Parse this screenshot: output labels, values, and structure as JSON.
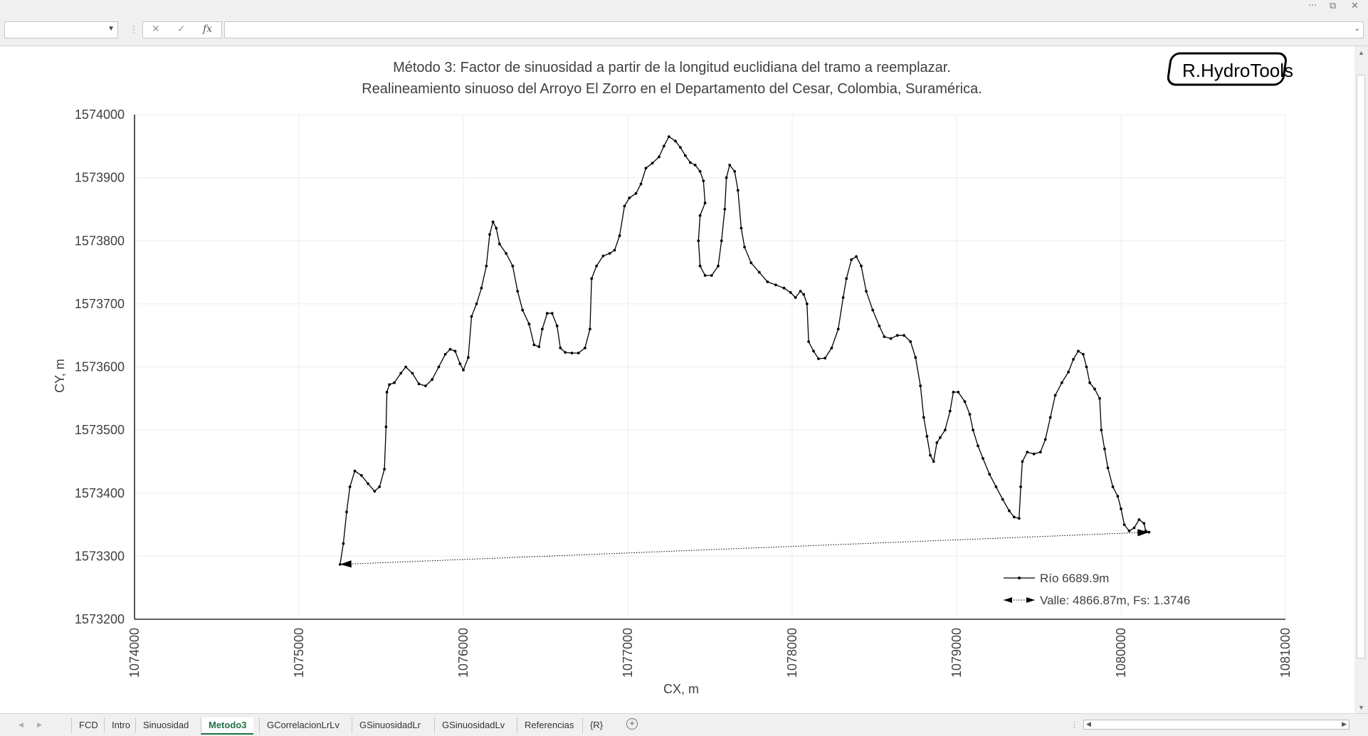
{
  "window": {
    "controls": [
      "···",
      "⧉",
      "✕"
    ]
  },
  "formula_bar": {
    "name_box_value": "",
    "cancel_icon": "✕",
    "enter_icon": "✓",
    "fx_label": "fx",
    "formula_value": ""
  },
  "sheet_tabs": {
    "tabs": [
      "FCD",
      "Intro",
      "Sinuosidad",
      "Metodo3",
      "GCorrelacionLrLv",
      "GSinuosidadLr",
      "GSinuosidadLv",
      "Referencias",
      "{R}"
    ],
    "active_tab": "Metodo3"
  },
  "logo_text": "R.HydroTools",
  "chart_data": {
    "type": "scatter",
    "title": "Método 3: Factor de sinuosidad a partir de la longitud euclidiana del tramo a reemplazar.",
    "subtitle": "Realineamiento sinuoso del Arroyo El Zorro en el Departamento del Cesar, Colombia, Suramérica.",
    "xlabel": "CX, m",
    "ylabel": "CY, m",
    "xlim": [
      1074000,
      1081000
    ],
    "ylim": [
      1573200,
      1574000
    ],
    "x_ticks": [
      1074000,
      1075000,
      1076000,
      1077000,
      1078000,
      1079000,
      1080000,
      1081000
    ],
    "y_ticks": [
      1573200,
      1573300,
      1573400,
      1573500,
      1573600,
      1573700,
      1573800,
      1573900,
      1574000
    ],
    "grid": true,
    "legend_position": "bottom-right",
    "series": [
      {
        "name": "Río 6689.9m",
        "style": "line-with-markers",
        "color": "#000000",
        "points": [
          [
            1075250,
            1573287
          ],
          [
            1075270,
            1573320
          ],
          [
            1075290,
            1573370
          ],
          [
            1075310,
            1573410
          ],
          [
            1075340,
            1573435
          ],
          [
            1075380,
            1573428
          ],
          [
            1075420,
            1573415
          ],
          [
            1075460,
            1573403
          ],
          [
            1075490,
            1573410
          ],
          [
            1075520,
            1573438
          ],
          [
            1075530,
            1573505
          ],
          [
            1075535,
            1573560
          ],
          [
            1075550,
            1573572
          ],
          [
            1075580,
            1573575
          ],
          [
            1075620,
            1573590
          ],
          [
            1075650,
            1573600
          ],
          [
            1075690,
            1573590
          ],
          [
            1075730,
            1573573
          ],
          [
            1075770,
            1573570
          ],
          [
            1075810,
            1573580
          ],
          [
            1075850,
            1573600
          ],
          [
            1075890,
            1573620
          ],
          [
            1075920,
            1573628
          ],
          [
            1075950,
            1573625
          ],
          [
            1075980,
            1573605
          ],
          [
            1076000,
            1573595
          ],
          [
            1076030,
            1573615
          ],
          [
            1076050,
            1573680
          ],
          [
            1076080,
            1573700
          ],
          [
            1076110,
            1573725
          ],
          [
            1076140,
            1573760
          ],
          [
            1076160,
            1573810
          ],
          [
            1076180,
            1573830
          ],
          [
            1076200,
            1573820
          ],
          [
            1076220,
            1573795
          ],
          [
            1076260,
            1573780
          ],
          [
            1076300,
            1573760
          ],
          [
            1076330,
            1573720
          ],
          [
            1076360,
            1573690
          ],
          [
            1076400,
            1573668
          ],
          [
            1076430,
            1573635
          ],
          [
            1076460,
            1573632
          ],
          [
            1076480,
            1573660
          ],
          [
            1076510,
            1573685
          ],
          [
            1076540,
            1573685
          ],
          [
            1076570,
            1573665
          ],
          [
            1076590,
            1573630
          ],
          [
            1076620,
            1573623
          ],
          [
            1076660,
            1573622
          ],
          [
            1076700,
            1573622
          ],
          [
            1076740,
            1573630
          ],
          [
            1076770,
            1573660
          ],
          [
            1076780,
            1573740
          ],
          [
            1076810,
            1573760
          ],
          [
            1076850,
            1573776
          ],
          [
            1076890,
            1573780
          ],
          [
            1076920,
            1573785
          ],
          [
            1076950,
            1573808
          ],
          [
            1076980,
            1573855
          ],
          [
            1077010,
            1573868
          ],
          [
            1077050,
            1573875
          ],
          [
            1077080,
            1573890
          ],
          [
            1077110,
            1573915
          ],
          [
            1077150,
            1573923
          ],
          [
            1077190,
            1573933
          ],
          [
            1077220,
            1573950
          ],
          [
            1077250,
            1573965
          ],
          [
            1077290,
            1573958
          ],
          [
            1077320,
            1573948
          ],
          [
            1077350,
            1573935
          ],
          [
            1077380,
            1573924
          ],
          [
            1077410,
            1573920
          ],
          [
            1077440,
            1573910
          ],
          [
            1077460,
            1573895
          ],
          [
            1077470,
            1573860
          ],
          [
            1077440,
            1573840
          ],
          [
            1077430,
            1573800
          ],
          [
            1077440,
            1573760
          ],
          [
            1077470,
            1573745
          ],
          [
            1077510,
            1573745
          ],
          [
            1077550,
            1573760
          ],
          [
            1077570,
            1573800
          ],
          [
            1077590,
            1573850
          ],
          [
            1077600,
            1573900
          ],
          [
            1077620,
            1573920
          ],
          [
            1077650,
            1573910
          ],
          [
            1077670,
            1573880
          ],
          [
            1077690,
            1573820
          ],
          [
            1077710,
            1573790
          ],
          [
            1077750,
            1573765
          ],
          [
            1077800,
            1573750
          ],
          [
            1077850,
            1573735
          ],
          [
            1077900,
            1573730
          ],
          [
            1077950,
            1573725
          ],
          [
            1077990,
            1573718
          ],
          [
            1078020,
            1573710
          ],
          [
            1078050,
            1573720
          ],
          [
            1078070,
            1573715
          ],
          [
            1078090,
            1573700
          ],
          [
            1078100,
            1573640
          ],
          [
            1078130,
            1573625
          ],
          [
            1078160,
            1573613
          ],
          [
            1078200,
            1573614
          ],
          [
            1078240,
            1573630
          ],
          [
            1078280,
            1573660
          ],
          [
            1078310,
            1573710
          ],
          [
            1078330,
            1573740
          ],
          [
            1078360,
            1573770
          ],
          [
            1078390,
            1573775
          ],
          [
            1078420,
            1573760
          ],
          [
            1078450,
            1573720
          ],
          [
            1078490,
            1573690
          ],
          [
            1078530,
            1573665
          ],
          [
            1078560,
            1573648
          ],
          [
            1078600,
            1573645
          ],
          [
            1078640,
            1573650
          ],
          [
            1078680,
            1573650
          ],
          [
            1078720,
            1573640
          ],
          [
            1078750,
            1573615
          ],
          [
            1078780,
            1573570
          ],
          [
            1078800,
            1573520
          ],
          [
            1078820,
            1573490
          ],
          [
            1078840,
            1573460
          ],
          [
            1078860,
            1573450
          ],
          [
            1078880,
            1573480
          ],
          [
            1078900,
            1573488
          ],
          [
            1078930,
            1573500
          ],
          [
            1078960,
            1573530
          ],
          [
            1078980,
            1573560
          ],
          [
            1079010,
            1573560
          ],
          [
            1079050,
            1573545
          ],
          [
            1079080,
            1573525
          ],
          [
            1079100,
            1573500
          ],
          [
            1079130,
            1573475
          ],
          [
            1079160,
            1573455
          ],
          [
            1079200,
            1573430
          ],
          [
            1079240,
            1573410
          ],
          [
            1079280,
            1573390
          ],
          [
            1079320,
            1573372
          ],
          [
            1079350,
            1573362
          ],
          [
            1079380,
            1573360
          ],
          [
            1079390,
            1573410
          ],
          [
            1079400,
            1573450
          ],
          [
            1079430,
            1573465
          ],
          [
            1079470,
            1573462
          ],
          [
            1079510,
            1573465
          ],
          [
            1079540,
            1573485
          ],
          [
            1079570,
            1573520
          ],
          [
            1079600,
            1573555
          ],
          [
            1079640,
            1573575
          ],
          [
            1079680,
            1573592
          ],
          [
            1079710,
            1573612
          ],
          [
            1079740,
            1573625
          ],
          [
            1079770,
            1573620
          ],
          [
            1079790,
            1573600
          ],
          [
            1079810,
            1573575
          ],
          [
            1079840,
            1573565
          ],
          [
            1079870,
            1573550
          ],
          [
            1079880,
            1573500
          ],
          [
            1079900,
            1573470
          ],
          [
            1079920,
            1573440
          ],
          [
            1079950,
            1573410
          ],
          [
            1079980,
            1573395
          ],
          [
            1080000,
            1573375
          ],
          [
            1080020,
            1573350
          ],
          [
            1080050,
            1573340
          ],
          [
            1080080,
            1573345
          ],
          [
            1080110,
            1573358
          ],
          [
            1080140,
            1573352
          ],
          [
            1080150,
            1573340
          ],
          [
            1080170,
            1573338
          ]
        ]
      },
      {
        "name": "Valle: 4866.87m, Fs: 1.3746",
        "style": "dotted-with-arrowheads",
        "color": "#000000",
        "points": [
          [
            1075250,
            1573287
          ],
          [
            1080170,
            1573338
          ]
        ]
      }
    ]
  }
}
